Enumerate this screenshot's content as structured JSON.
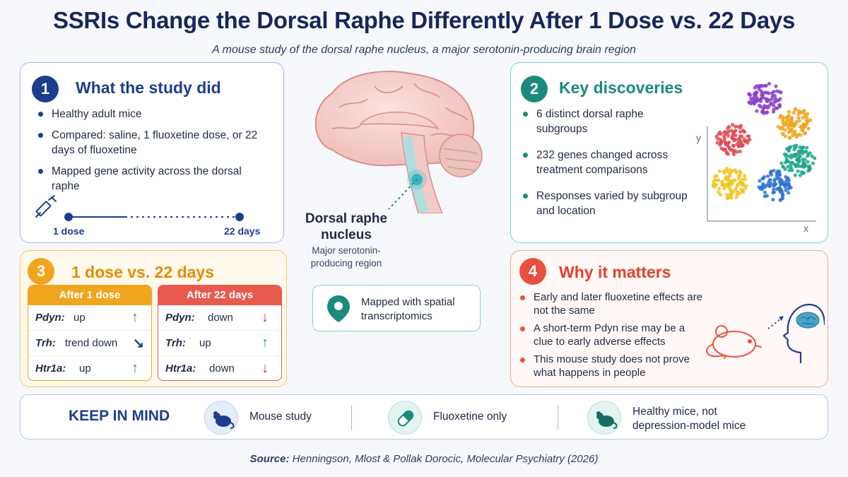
{
  "header": {
    "title": "SSRIs Change the Dorsal Raphe Differently After 1 Dose vs. 22 Days",
    "subtitle": "A mouse study of the dorsal raphe nucleus, a major serotonin-producing brain region"
  },
  "study": {
    "number": "1",
    "title": "What the study did",
    "bullets": [
      "Healthy adult mice",
      "Compared: saline, 1 fluoxetine dose, or 22 days of fluoxetine",
      "Mapped gene activity across the dorsal raphe"
    ],
    "timeline_start": "1 dose",
    "timeline_end": "22 days"
  },
  "discoveries": {
    "number": "2",
    "title": "Key discoveries",
    "bullets": [
      "6 distinct dorsal raphe subgroups",
      "232 genes changed across treatment comparisons",
      "Responses varied by subgroup and location"
    ],
    "axis_x": "x",
    "axis_y": "y"
  },
  "comparison": {
    "number": "3",
    "title": "1 dose vs. 22 days",
    "after_1_dose": {
      "header": "After 1 dose",
      "rows": [
        {
          "gene": "Pdyn:",
          "effect": "up",
          "arrow": "↑"
        },
        {
          "gene": "Trh:",
          "effect": "trend down",
          "arrow": "↘"
        },
        {
          "gene": "Htr1a:",
          "effect": "up",
          "arrow": "↑"
        }
      ]
    },
    "after_22_days": {
      "header": "After 22 days",
      "rows": [
        {
          "gene": "Pdyn:",
          "effect": "down",
          "arrow": "↓"
        },
        {
          "gene": "Trh:",
          "effect": "up",
          "arrow": "↑"
        },
        {
          "gene": "Htr1a:",
          "effect": "down",
          "arrow": "↓"
        }
      ]
    }
  },
  "matters": {
    "number": "4",
    "title": "Why it matters",
    "bullets": [
      "Early and later fluoxetine effects are not the same",
      "A short-term Pdyn rise may be a clue to early adverse effects",
      "This mouse study does not prove what happens in people"
    ]
  },
  "brain": {
    "label": "Dorsal raphe nucleus",
    "sublabel": "Major serotonin-producing region",
    "mapped": "Mapped with spatial transcriptomics"
  },
  "keep_in_mind": {
    "label": "KEEP IN MIND",
    "items": [
      "Mouse study",
      "Fluoxetine only",
      "Healthy mice, not depression-model mice"
    ]
  },
  "source": {
    "prefix": "Source:",
    "text": "Henningson, Mlost & Pollak Dorocic, Molecular Psychiatry (2026)"
  },
  "colors": {
    "navy": "#1d3e8c",
    "teal": "#1a8a7d",
    "orange": "#f0a51e",
    "red": "#e8513f"
  }
}
